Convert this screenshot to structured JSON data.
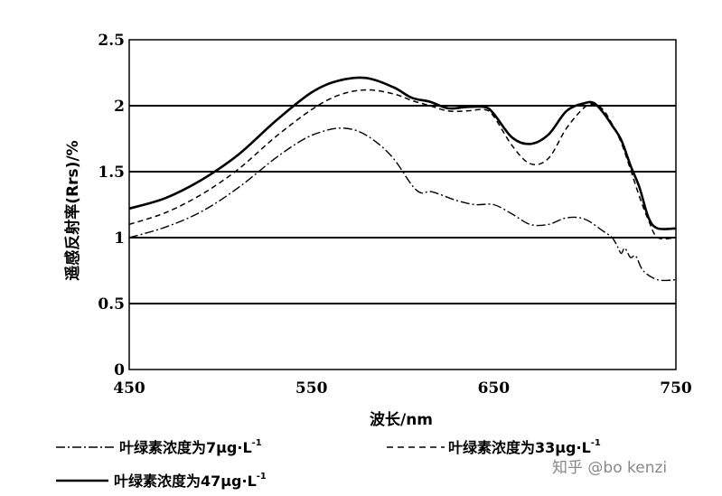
{
  "chart_data": {
    "type": "line",
    "title": "",
    "xlabel": "波长/nm",
    "ylabel": "遥感反射率(Rrs)/%",
    "xlim": [
      450,
      750
    ],
    "ylim": [
      0,
      2.5
    ],
    "x_ticks": [
      "450",
      "550",
      "650",
      "750"
    ],
    "y_ticks": [
      "0",
      "0.5",
      "1",
      "1.5",
      "2",
      "2.5"
    ],
    "grid": "horizontal",
    "legend_position": "bottom",
    "series": [
      {
        "name": "叶绿素浓度为7μg·L⁻¹",
        "style": "dash-dot",
        "x": [
          450,
          470,
          490,
          510,
          530,
          545,
          555,
          565,
          575,
          585,
          595,
          605,
          610,
          615,
          620,
          630,
          640,
          650,
          660,
          670,
          680,
          690,
          700,
          710,
          715,
          718,
          720,
          722,
          725,
          728,
          732,
          740,
          750
        ],
        "y": [
          1.0,
          1.08,
          1.2,
          1.38,
          1.6,
          1.74,
          1.8,
          1.83,
          1.81,
          1.73,
          1.6,
          1.4,
          1.34,
          1.35,
          1.33,
          1.28,
          1.25,
          1.25,
          1.18,
          1.1,
          1.1,
          1.15,
          1.14,
          1.05,
          1.0,
          0.93,
          0.88,
          0.92,
          0.85,
          0.86,
          0.75,
          0.68,
          0.68
        ]
      },
      {
        "name": "叶绿素浓度为33μg·L⁻¹",
        "style": "dashed",
        "x": [
          450,
          470,
          490,
          510,
          530,
          550,
          565,
          580,
          595,
          605,
          615,
          625,
          635,
          645,
          650,
          660,
          670,
          680,
          690,
          700,
          705,
          710,
          715,
          720,
          725,
          730,
          735,
          740,
          750
        ],
        "y": [
          1.1,
          1.19,
          1.33,
          1.52,
          1.76,
          1.97,
          2.08,
          2.12,
          2.09,
          2.04,
          2.0,
          1.96,
          1.96,
          1.97,
          1.92,
          1.7,
          1.56,
          1.6,
          1.83,
          1.99,
          2.01,
          1.97,
          1.86,
          1.72,
          1.52,
          1.31,
          1.13,
          1.0,
          1.0
        ]
      },
      {
        "name": "叶绿素浓度为47μg·L⁻¹",
        "style": "solid",
        "x": [
          450,
          470,
          490,
          510,
          530,
          550,
          565,
          580,
          595,
          605,
          615,
          625,
          635,
          645,
          650,
          660,
          670,
          680,
          690,
          700,
          705,
          710,
          715,
          720,
          725,
          730,
          735,
          740,
          750
        ],
        "y": [
          1.22,
          1.3,
          1.44,
          1.63,
          1.88,
          2.1,
          2.19,
          2.21,
          2.14,
          2.06,
          2.03,
          1.98,
          1.99,
          1.99,
          1.94,
          1.76,
          1.71,
          1.78,
          1.96,
          2.02,
          2.02,
          1.95,
          1.85,
          1.74,
          1.55,
          1.38,
          1.15,
          1.07,
          1.07
        ]
      }
    ]
  },
  "legend": {
    "entry1": "叶绿素浓度为7μg·L",
    "entry1_sup": "-1",
    "entry2": "叶绿素浓度为33μg·L",
    "entry2_sup": "-1",
    "entry3": "叶绿素浓度为47μg·L",
    "entry3_sup": "-1"
  },
  "watermark": "知乎 @bo kenzi"
}
